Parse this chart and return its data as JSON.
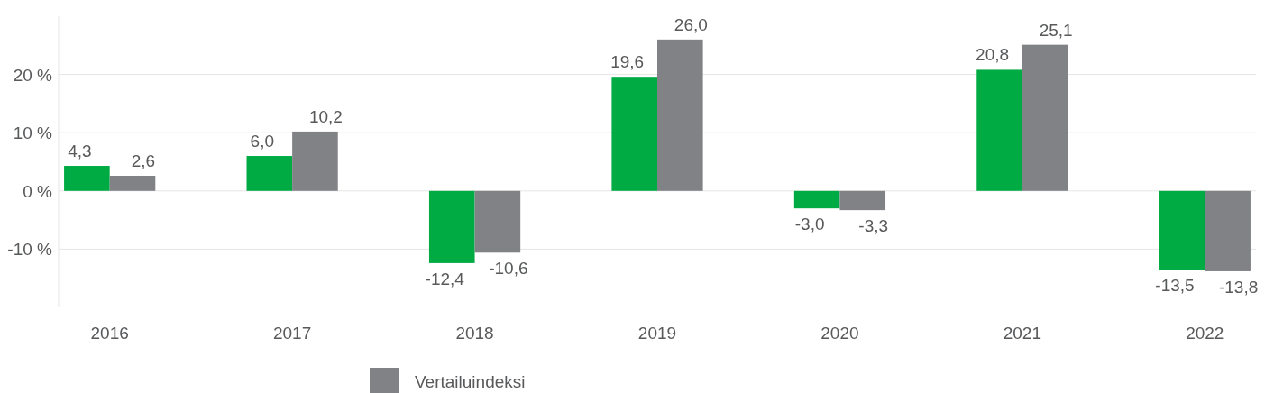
{
  "chart_data": {
    "type": "bar",
    "categories": [
      "2016",
      "2017",
      "2018",
      "2019",
      "2020",
      "2021",
      "2022"
    ],
    "series": [
      {
        "color": "#00ab44",
        "values": [
          4.3,
          6.0,
          -12.4,
          19.6,
          -3.0,
          20.8,
          -13.5
        ],
        "value_labels": [
          "4,3",
          "6,0",
          "-12,4",
          "19,6",
          "-3,0",
          "20,8",
          "-13,5"
        ]
      },
      {
        "name": "Vertailuindeksi",
        "color": "#808285",
        "values": [
          2.6,
          10.2,
          -10.6,
          26.0,
          -3.3,
          25.1,
          -13.8
        ],
        "value_labels": [
          "2,6",
          "10,2",
          "-10,6",
          "26,0",
          "-3,3",
          "25,1",
          "-13,8"
        ]
      }
    ],
    "yticks": [
      {
        "value": -10,
        "label": "-10 %"
      },
      {
        "value": 0,
        "label": "0 %"
      },
      {
        "value": 10,
        "label": "10 %"
      },
      {
        "value": 20,
        "label": "20 %"
      }
    ],
    "ylim": [
      -20,
      30
    ],
    "grid": "y",
    "legend": "bottom left"
  }
}
